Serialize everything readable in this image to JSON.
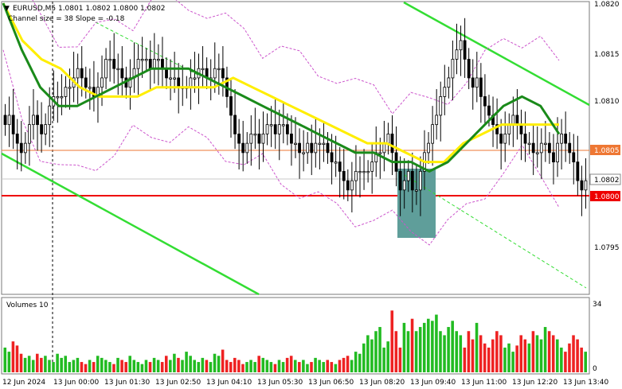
{
  "header": {
    "symbol_line": "EURUSD,M5  1.0801 1.0802 1.0800 1.0802",
    "indicator_line": "Channel size = 38 Slope = -0.18"
  },
  "volume_panel": {
    "title": "Volumes 10",
    "scale_max": "34",
    "scale_min": "0"
  },
  "price_axis": {
    "ticks": [
      "1.0820",
      "1.0815",
      "1.0810",
      "1.0805",
      "1.0800",
      "1.0795"
    ],
    "current_price_label": "1.0802",
    "level_orange_label": "1.0805",
    "level_red_label": "1.0800"
  },
  "time_axis": {
    "ticks": [
      "12 Jun 2024",
      "13 Jun 00:00",
      "13 Jun 01:30",
      "13 Jun 02:50",
      "13 Jun 04:10",
      "13 Jun 05:30",
      "13 Jun 06:50",
      "13 Jun 08:20",
      "13 Jun 09:40",
      "13 Jun 11:00",
      "13 Jun 12:20",
      "13 Jun 13:40"
    ]
  },
  "colors": {
    "candle": "#000000",
    "ma_yellow": "#ffee00",
    "ma_green": "#1a8a1a",
    "channel": "#33dd33",
    "bollinger": "#cc55cc",
    "level_orange": "#ee7733",
    "level_red": "#ee0000",
    "signal_box": "#5f9e9a",
    "volume_up": "#22bb22",
    "volume_down": "#ee2222"
  },
  "chart_data": {
    "type": "candlestick",
    "symbol": "EURUSD",
    "timeframe": "M5",
    "y_range": [
      1.079,
      1.0821
    ],
    "closes": [
      1.0808,
      1.0809,
      1.0807,
      1.0806,
      1.0805,
      1.0806,
      1.0808,
      1.0809,
      1.0808,
      1.0807,
      1.0808,
      1.081,
      1.0811,
      1.0811,
      1.0811,
      1.0812,
      1.0812,
      1.0813,
      1.0814,
      1.0813,
      1.0812,
      1.0812,
      1.0811,
      1.0812,
      1.0813,
      1.0815,
      1.0815,
      1.0814,
      1.0814,
      1.0813,
      1.0812,
      1.0813,
      1.0814,
      1.0815,
      1.0815,
      1.0815,
      1.0814,
      1.0815,
      1.0815,
      1.0814,
      1.0813,
      1.0813,
      1.0813,
      1.0812,
      1.0812,
      1.0812,
      1.0813,
      1.0813,
      1.0814,
      1.0814,
      1.0813,
      1.0813,
      1.0814,
      1.0814,
      1.0813,
      1.0811,
      1.0809,
      1.0807,
      1.0806,
      1.0805,
      1.0806,
      1.0807,
      1.0807,
      1.0806,
      1.0807,
      1.0808,
      1.0808,
      1.0807,
      1.0808,
      1.0808,
      1.0807,
      1.0806,
      1.0806,
      1.0805,
      1.0805,
      1.0806,
      1.0805,
      1.0806,
      1.0806,
      1.0806,
      1.0805,
      1.0804,
      1.0804,
      1.0803,
      1.0802,
      1.0801,
      1.0802,
      1.0803,
      1.0803,
      1.0803,
      1.0803,
      1.0804,
      1.0805,
      1.0805,
      1.0806,
      1.0807,
      1.0805,
      1.0803,
      1.0801,
      1.0802,
      1.0803,
      1.0801,
      1.0801,
      1.0803,
      1.0805,
      1.0806,
      1.0808,
      1.0809,
      1.0811,
      1.0812,
      1.0813,
      1.0815,
      1.0816,
      1.0817,
      1.0815,
      1.0813,
      1.0812,
      1.0813,
      1.0811,
      1.081,
      1.0809,
      1.0808,
      1.0807,
      1.0806,
      1.0807,
      1.0808,
      1.0809,
      1.0808,
      1.0807,
      1.0806,
      1.0806,
      1.0805,
      1.0805,
      1.0806,
      1.0806,
      1.0805,
      1.0804,
      1.0806,
      1.0807,
      1.0806,
      1.0805,
      1.0804,
      1.0802,
      1.0801,
      1.0802
    ],
    "volumes": [
      12,
      10,
      15,
      13,
      9,
      7,
      8,
      6,
      9,
      7,
      8,
      6,
      5,
      9,
      7,
      8,
      5,
      6,
      7,
      5,
      4,
      6,
      5,
      8,
      7,
      6,
      5,
      4,
      7,
      6,
      5,
      8,
      6,
      5,
      4,
      6,
      5,
      7,
      6,
      5,
      8,
      6,
      9,
      7,
      6,
      10,
      8,
      6,
      5,
      7,
      6,
      5,
      9,
      8,
      11,
      6,
      5,
      7,
      6,
      4,
      5,
      6,
      5,
      8,
      7,
      6,
      5,
      4,
      6,
      5,
      7,
      8,
      6,
      5,
      6,
      4,
      5,
      7,
      6,
      5,
      6,
      5,
      4,
      6,
      7,
      8,
      6,
      10,
      9,
      14,
      18,
      16,
      20,
      22,
      12,
      15,
      30,
      20,
      12,
      24,
      20,
      26,
      20,
      22,
      24,
      26,
      25,
      28,
      20,
      18,
      22,
      25,
      20,
      18,
      12,
      20,
      16,
      24,
      18,
      14,
      12,
      16,
      20,
      18,
      12,
      14,
      10,
      13,
      18,
      16,
      14,
      20,
      18,
      16,
      22,
      20,
      18,
      16,
      12,
      10,
      14,
      18,
      16,
      12,
      10
    ],
    "moving_averages": [
      {
        "color": "yellow",
        "values": [
          1.0821,
          1.0817,
          1.0815,
          1.0814,
          1.0812,
          1.0811,
          1.0811,
          1.0811,
          1.0812,
          1.0812,
          1.0812,
          1.0812,
          1.0813,
          1.0812,
          1.0811,
          1.081,
          1.0809,
          1.0808,
          1.0807,
          1.0806,
          1.0806,
          1.0805,
          1.0804,
          1.0804,
          1.0806,
          1.0807,
          1.0808,
          1.0808,
          1.0808,
          1.0808
        ]
      },
      {
        "color": "green",
        "values": [
          1.0821,
          1.0816,
          1.0812,
          1.081,
          1.081,
          1.0811,
          1.0812,
          1.0813,
          1.0814,
          1.0814,
          1.0814,
          1.0813,
          1.0812,
          1.0811,
          1.081,
          1.0809,
          1.0808,
          1.0807,
          1.0806,
          1.0805,
          1.0805,
          1.0804,
          1.0804,
          1.0803,
          1.0804,
          1.0806,
          1.0808,
          1.081,
          1.0811,
          1.081,
          1.0807
        ]
      }
    ],
    "horizontal_levels": [
      1.0805,
      1.08
    ],
    "current_price": 1.0802
  }
}
